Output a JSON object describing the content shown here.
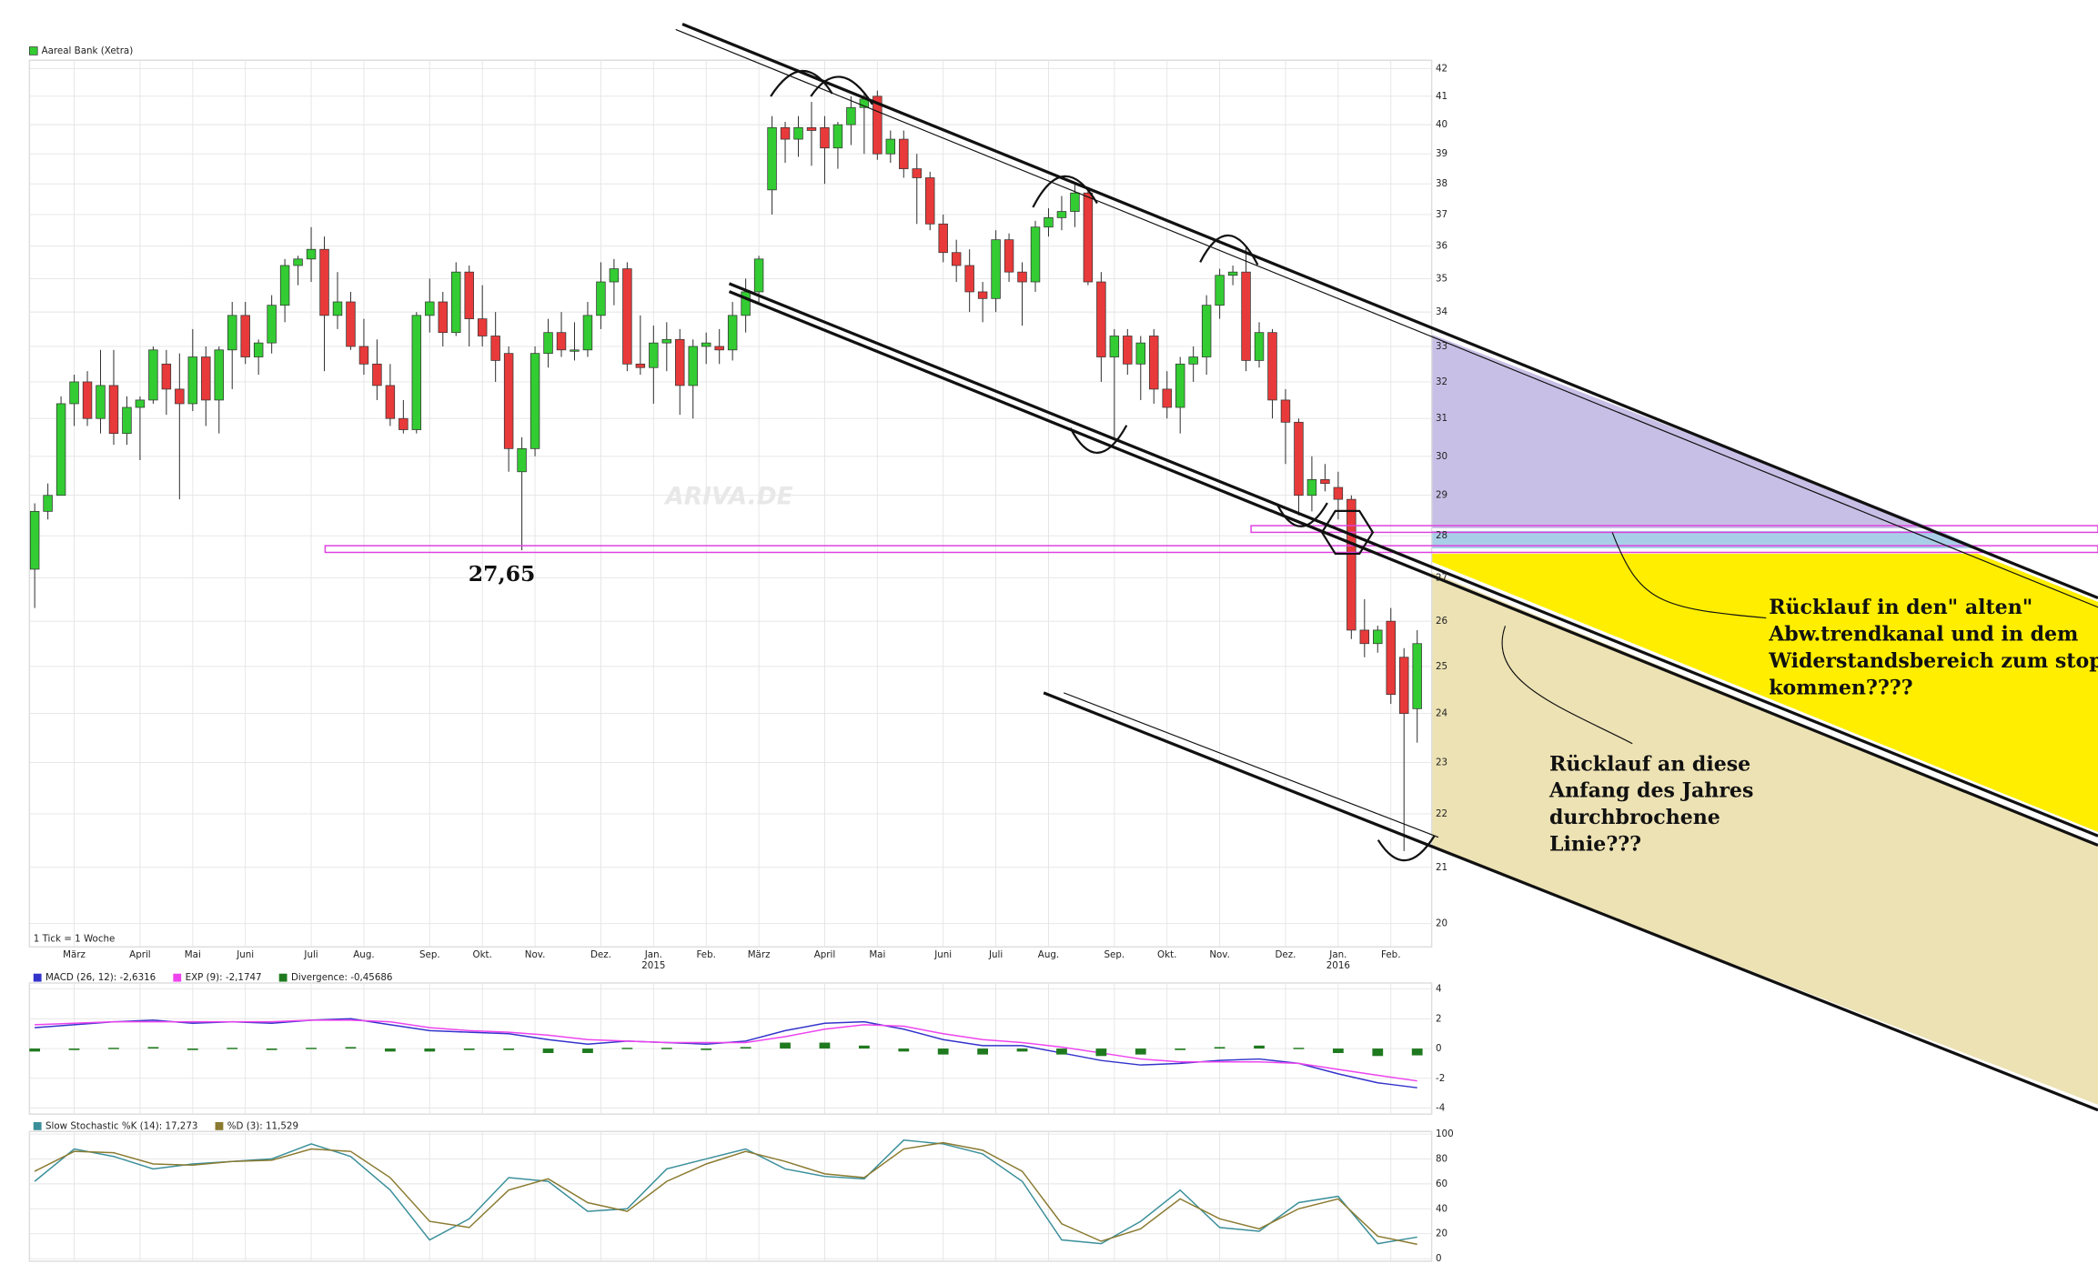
{
  "chart_data": [
    {
      "type": "candlestick",
      "title": "Aareal Bank (Xetra)",
      "note": "1 Tick = 1 Woche",
      "watermark": "ARIVA.DE",
      "up_color": "#33cc33",
      "down_color": "#e83a3a",
      "log": true,
      "grid": true,
      "ylim": [
        19.6,
        42.3
      ],
      "yticks": [
        20,
        21,
        22,
        23,
        24,
        25,
        26,
        27,
        28,
        29,
        30,
        31,
        32,
        33,
        34,
        35,
        36,
        37,
        38,
        39,
        40,
        41,
        42
      ],
      "xlim": [
        -0.4,
        106.1
      ],
      "xticks": [
        {
          "value": 3,
          "label": "März"
        },
        {
          "value": 8,
          "label": "April"
        },
        {
          "value": 12,
          "label": "Mai"
        },
        {
          "value": 16,
          "label": "Juni"
        },
        {
          "value": 21,
          "label": "Juli"
        },
        {
          "value": 25,
          "label": "Aug."
        },
        {
          "value": 30,
          "label": "Sep."
        },
        {
          "value": 34,
          "label": "Okt."
        },
        {
          "value": 38,
          "label": "Nov."
        },
        {
          "value": 43,
          "label": "Dez."
        },
        {
          "value": 47,
          "label": "Jan."
        },
        {
          "value": 51,
          "label": "Feb."
        },
        {
          "value": 55,
          "label": "März"
        },
        {
          "value": 60,
          "label": "April"
        },
        {
          "value": 64,
          "label": "Mai"
        },
        {
          "value": 69,
          "label": "Juni"
        },
        {
          "value": 73,
          "label": "Juli"
        },
        {
          "value": 77,
          "label": "Aug."
        },
        {
          "value": 82,
          "label": "Sep."
        },
        {
          "value": 86,
          "label": "Okt."
        },
        {
          "value": 90,
          "label": "Nov."
        },
        {
          "value": 95,
          "label": "Dez."
        },
        {
          "value": 99,
          "label": "Jan."
        },
        {
          "value": 103,
          "label": "Feb."
        }
      ],
      "year_labels": [
        {
          "value": 47,
          "label": "2015"
        },
        {
          "value": 99,
          "label": "2016"
        }
      ],
      "candles": [
        [
          27.2,
          28.8,
          26.3,
          28.6
        ],
        [
          28.6,
          29.3,
          28.4,
          29.0
        ],
        [
          29.0,
          31.6,
          29.0,
          31.4
        ],
        [
          31.4,
          32.2,
          30.8,
          32.0
        ],
        [
          32.0,
          32.3,
          30.8,
          31.0
        ],
        [
          31.0,
          32.9,
          30.6,
          31.9
        ],
        [
          31.9,
          32.9,
          30.3,
          30.6
        ],
        [
          30.6,
          31.6,
          30.3,
          31.3
        ],
        [
          31.3,
          31.6,
          29.9,
          31.5
        ],
        [
          31.5,
          33.0,
          31.4,
          32.9
        ],
        [
          32.5,
          32.9,
          31.1,
          31.8
        ],
        [
          31.8,
          32.8,
          28.9,
          31.4
        ],
        [
          31.4,
          33.5,
          31.2,
          32.7
        ],
        [
          32.7,
          33.0,
          30.8,
          31.5
        ],
        [
          31.5,
          33.0,
          30.6,
          32.9
        ],
        [
          32.9,
          34.3,
          31.8,
          33.9
        ],
        [
          33.9,
          34.3,
          32.5,
          32.7
        ],
        [
          32.7,
          33.2,
          32.2,
          33.1
        ],
        [
          33.1,
          34.5,
          32.8,
          34.2
        ],
        [
          34.2,
          35.6,
          33.7,
          35.4
        ],
        [
          35.4,
          35.7,
          34.8,
          35.6
        ],
        [
          35.6,
          36.6,
          34.9,
          35.9
        ],
        [
          35.9,
          36.3,
          32.3,
          33.9
        ],
        [
          33.9,
          35.2,
          33.5,
          34.3
        ],
        [
          34.3,
          34.6,
          32.9,
          33.0
        ],
        [
          33.0,
          33.8,
          32.2,
          32.5
        ],
        [
          32.5,
          33.2,
          31.5,
          31.9
        ],
        [
          31.9,
          32.5,
          30.8,
          31.0
        ],
        [
          31.0,
          31.5,
          30.6,
          30.7
        ],
        [
          30.7,
          34.0,
          30.6,
          33.9
        ],
        [
          33.9,
          35.0,
          33.4,
          34.3
        ],
        [
          34.3,
          34.6,
          33.0,
          33.4
        ],
        [
          33.4,
          35.5,
          33.3,
          35.2
        ],
        [
          35.2,
          35.4,
          33.0,
          33.8
        ],
        [
          33.8,
          34.8,
          33.0,
          33.3
        ],
        [
          33.3,
          34.0,
          32.0,
          32.6
        ],
        [
          32.8,
          33.0,
          29.6,
          30.2
        ],
        [
          29.6,
          30.5,
          27.65,
          30.2
        ],
        [
          30.2,
          33.0,
          30.0,
          32.8
        ],
        [
          32.8,
          33.8,
          32.4,
          33.4
        ],
        [
          33.4,
          34.0,
          32.7,
          32.9
        ],
        [
          32.9,
          33.7,
          32.6,
          32.9
        ],
        [
          32.9,
          34.3,
          32.7,
          33.9
        ],
        [
          33.9,
          35.5,
          33.5,
          34.9
        ],
        [
          34.9,
          35.6,
          34.2,
          35.3
        ],
        [
          35.3,
          35.5,
          32.3,
          32.5
        ],
        [
          32.5,
          33.9,
          32.2,
          32.4
        ],
        [
          32.4,
          33.6,
          31.4,
          33.1
        ],
        [
          33.1,
          33.7,
          32.3,
          33.2
        ],
        [
          33.2,
          33.5,
          31.1,
          31.9
        ],
        [
          31.9,
          33.2,
          31.0,
          33.0
        ],
        [
          33.0,
          33.4,
          32.5,
          33.1
        ],
        [
          33.0,
          33.5,
          32.5,
          32.9
        ],
        [
          32.9,
          34.3,
          32.6,
          33.9
        ],
        [
          33.9,
          35.0,
          33.4,
          34.6
        ],
        [
          34.6,
          35.7,
          34.3,
          35.6
        ],
        [
          37.8,
          40.3,
          37.0,
          39.9
        ],
        [
          39.9,
          40.1,
          38.7,
          39.5
        ],
        [
          39.5,
          40.3,
          38.9,
          39.9
        ],
        [
          39.9,
          40.8,
          38.6,
          39.8
        ],
        [
          39.9,
          40.3,
          38.0,
          39.2
        ],
        [
          39.2,
          40.1,
          38.5,
          40.0
        ],
        [
          40.0,
          41.0,
          39.3,
          40.6
        ],
        [
          40.6,
          41.1,
          39.0,
          40.9
        ],
        [
          41.0,
          41.2,
          38.8,
          39.0
        ],
        [
          39.0,
          39.8,
          38.7,
          39.5
        ],
        [
          39.5,
          39.8,
          38.2,
          38.5
        ],
        [
          38.5,
          39.0,
          36.7,
          38.2
        ],
        [
          38.2,
          38.4,
          36.5,
          36.7
        ],
        [
          36.7,
          37.0,
          35.5,
          35.8
        ],
        [
          35.8,
          36.2,
          34.9,
          35.4
        ],
        [
          35.4,
          35.9,
          34.0,
          34.6
        ],
        [
          34.6,
          34.9,
          33.7,
          34.4
        ],
        [
          34.4,
          36.5,
          34.0,
          36.2
        ],
        [
          36.2,
          36.4,
          34.9,
          35.2
        ],
        [
          35.2,
          35.5,
          33.6,
          34.9
        ],
        [
          34.9,
          36.8,
          34.6,
          36.6
        ],
        [
          36.6,
          37.2,
          36.3,
          36.9
        ],
        [
          36.9,
          37.6,
          36.5,
          37.1
        ],
        [
          37.1,
          38.0,
          36.6,
          37.7
        ],
        [
          37.7,
          37.9,
          34.8,
          34.9
        ],
        [
          34.9,
          35.2,
          32.0,
          32.7
        ],
        [
          32.7,
          33.5,
          30.5,
          33.3
        ],
        [
          33.3,
          33.5,
          32.2,
          32.5
        ],
        [
          32.5,
          33.3,
          31.5,
          33.1
        ],
        [
          33.3,
          33.5,
          31.4,
          31.8
        ],
        [
          31.8,
          32.3,
          31.0,
          31.3
        ],
        [
          31.3,
          32.7,
          30.6,
          32.5
        ],
        [
          32.5,
          33.0,
          32.0,
          32.7
        ],
        [
          32.7,
          34.5,
          32.2,
          34.2
        ],
        [
          34.2,
          35.3,
          33.8,
          35.1
        ],
        [
          35.1,
          35.4,
          34.8,
          35.2
        ],
        [
          35.2,
          36.0,
          32.3,
          32.6
        ],
        [
          32.6,
          33.7,
          32.4,
          33.4
        ],
        [
          33.4,
          33.5,
          31.0,
          31.5
        ],
        [
          31.5,
          31.8,
          29.8,
          30.9
        ],
        [
          30.9,
          31.0,
          28.5,
          29.0
        ],
        [
          29.0,
          30.0,
          28.6,
          29.4
        ],
        [
          29.4,
          29.8,
          29.1,
          29.3
        ],
        [
          29.2,
          29.6,
          28.4,
          28.9
        ],
        [
          28.9,
          29.0,
          25.6,
          25.8
        ],
        [
          25.8,
          26.5,
          25.2,
          25.5
        ],
        [
          25.5,
          25.9,
          25.3,
          25.8
        ],
        [
          26.0,
          26.3,
          24.2,
          24.4
        ],
        [
          25.2,
          25.4,
          21.3,
          24.0
        ],
        [
          24.1,
          25.8,
          23.4,
          25.5
        ]
      ],
      "annotations": [
        {
          "text": "27,65"
        },
        {
          "lines": [
            "Rücklauf in den\" alten\"",
            "Abw.trendkanal und in dem",
            "Widerstandsbereich zum stoppen",
            "kommen????"
          ]
        },
        {
          "lines": [
            "Rücklauf an diese",
            "Anfang des Jahres",
            "durchbrochene",
            "Linie???"
          ]
        }
      ]
    },
    {
      "type": "line",
      "grid": true,
      "ylim": [
        -4.4,
        4.4
      ],
      "yticks": [
        4,
        2,
        0,
        -2,
        -4
      ],
      "xlim": [
        -0.4,
        106.1
      ],
      "x": [
        0,
        3,
        6,
        9,
        12,
        15,
        18,
        21,
        24,
        27,
        30,
        33,
        36,
        39,
        42,
        45,
        48,
        51,
        54,
        57,
        60,
        63,
        66,
        69,
        72,
        75,
        78,
        81,
        84,
        87,
        90,
        93,
        96,
        99,
        102,
        105
      ],
      "series": [
        {
          "name": "MACD (26, 12): -2,6316",
          "color": "#3333cc",
          "values": [
            1.4,
            1.6,
            1.8,
            1.9,
            1.7,
            1.8,
            1.7,
            1.9,
            2.0,
            1.6,
            1.2,
            1.1,
            1.0,
            0.6,
            0.3,
            0.5,
            0.4,
            0.3,
            0.5,
            1.2,
            1.7,
            1.8,
            1.3,
            0.6,
            0.2,
            0.2,
            -0.3,
            -0.8,
            -1.1,
            -1.0,
            -0.8,
            -0.7,
            -1.0,
            -1.7,
            -2.3,
            -2.6316
          ]
        },
        {
          "name": "EXP (9): -2,1747",
          "color": "#ee44ee",
          "values": [
            1.6,
            1.7,
            1.8,
            1.8,
            1.8,
            1.8,
            1.8,
            1.9,
            1.9,
            1.8,
            1.4,
            1.2,
            1.1,
            0.9,
            0.6,
            0.5,
            0.4,
            0.4,
            0.4,
            0.8,
            1.3,
            1.6,
            1.5,
            1.0,
            0.6,
            0.4,
            0.1,
            -0.3,
            -0.7,
            -0.9,
            -0.9,
            -0.9,
            -1.0,
            -1.4,
            -1.8,
            -2.1747
          ]
        },
        {
          "name": "Divergence: -0,45686",
          "color": "#1f7a1f",
          "kind": "bar",
          "values": [
            -0.2,
            -0.1,
            0.05,
            0.1,
            -0.1,
            0.05,
            -0.1,
            0.05,
            0.1,
            -0.2,
            -0.2,
            -0.1,
            -0.1,
            -0.3,
            -0.3,
            0.05,
            0.05,
            -0.1,
            0.1,
            0.4,
            0.4,
            0.2,
            -0.2,
            -0.4,
            -0.4,
            -0.2,
            -0.4,
            -0.5,
            -0.4,
            -0.1,
            0.1,
            0.2,
            0.05,
            -0.3,
            -0.5,
            -0.45686
          ]
        }
      ]
    },
    {
      "type": "line",
      "grid": true,
      "ylim": [
        -2,
        102
      ],
      "yticks": [
        0,
        20,
        40,
        60,
        80,
        100
      ],
      "xlim": [
        -0.4,
        106.1
      ],
      "x": [
        0,
        3,
        6,
        9,
        12,
        15,
        18,
        21,
        24,
        27,
        30,
        33,
        36,
        39,
        42,
        45,
        48,
        51,
        54,
        57,
        60,
        63,
        66,
        69,
        72,
        75,
        78,
        81,
        84,
        87,
        90,
        93,
        96,
        99,
        102,
        105
      ],
      "series": [
        {
          "name": "Slow Stochastic %K (14): 17,273",
          "color": "#3a8f9a",
          "values": [
            62,
            88,
            82,
            72,
            76,
            78,
            80,
            92,
            82,
            55,
            15,
            32,
            65,
            62,
            38,
            40,
            72,
            80,
            88,
            72,
            66,
            64,
            95,
            92,
            84,
            62,
            15,
            12,
            30,
            55,
            25,
            22,
            45,
            50,
            12,
            17.273
          ]
        },
        {
          "name": "%D (3): 11,529",
          "color": "#8a7a30",
          "values": [
            70,
            86,
            85,
            76,
            75,
            78,
            79,
            88,
            86,
            65,
            30,
            25,
            55,
            64,
            45,
            38,
            62,
            76,
            86,
            78,
            68,
            65,
            88,
            93,
            87,
            70,
            28,
            14,
            24,
            48,
            32,
            24,
            40,
            48,
            18,
            11.529
          ]
        }
      ]
    }
  ]
}
